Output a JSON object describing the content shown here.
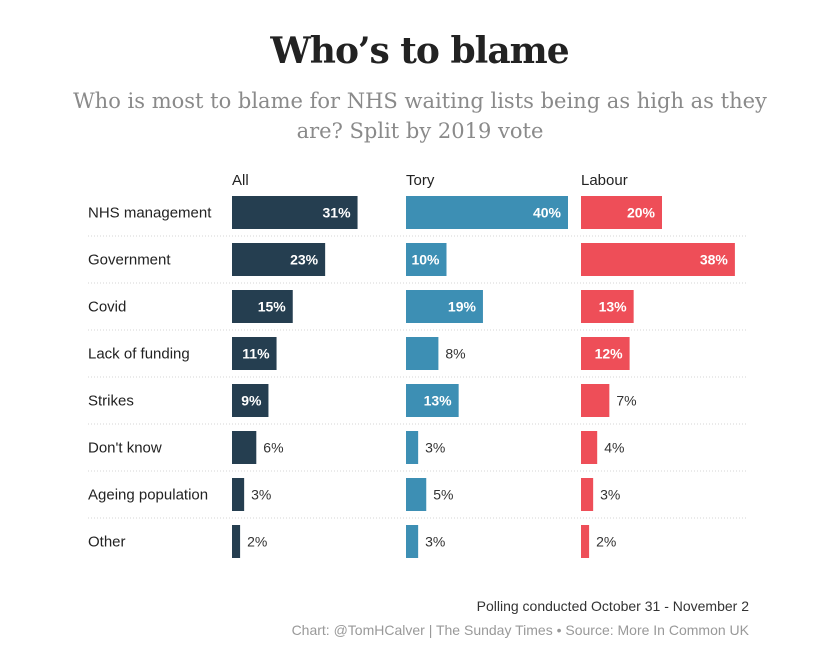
{
  "chart_data": {
    "type": "bar",
    "title": "Who’s to blame",
    "subtitle": "Who is most to blame for NHS waiting lists being as high as they are? Split by 2019 vote",
    "categories": [
      "NHS management",
      "Government",
      "Covid",
      "Lack of funding",
      "Strikes",
      "Don't know",
      "Ageing population",
      "Other"
    ],
    "series": [
      {
        "name": "All",
        "color": "#253e50",
        "values": [
          31,
          23,
          15,
          11,
          9,
          6,
          3,
          2
        ]
      },
      {
        "name": "Tory",
        "color": "#3d8fb4",
        "values": [
          40,
          10,
          19,
          8,
          13,
          3,
          5,
          3
        ]
      },
      {
        "name": "Labour",
        "color": "#ee4e58",
        "values": [
          20,
          38,
          13,
          12,
          7,
          4,
          3,
          2
        ]
      }
    ],
    "value_suffix": "%",
    "xlim": [
      0,
      40
    ]
  },
  "footer": {
    "polling": "Polling conducted October 31 - November 2",
    "credit": "Chart: @TomHCalver | The Sunday Times • Source: More In Common UK"
  }
}
